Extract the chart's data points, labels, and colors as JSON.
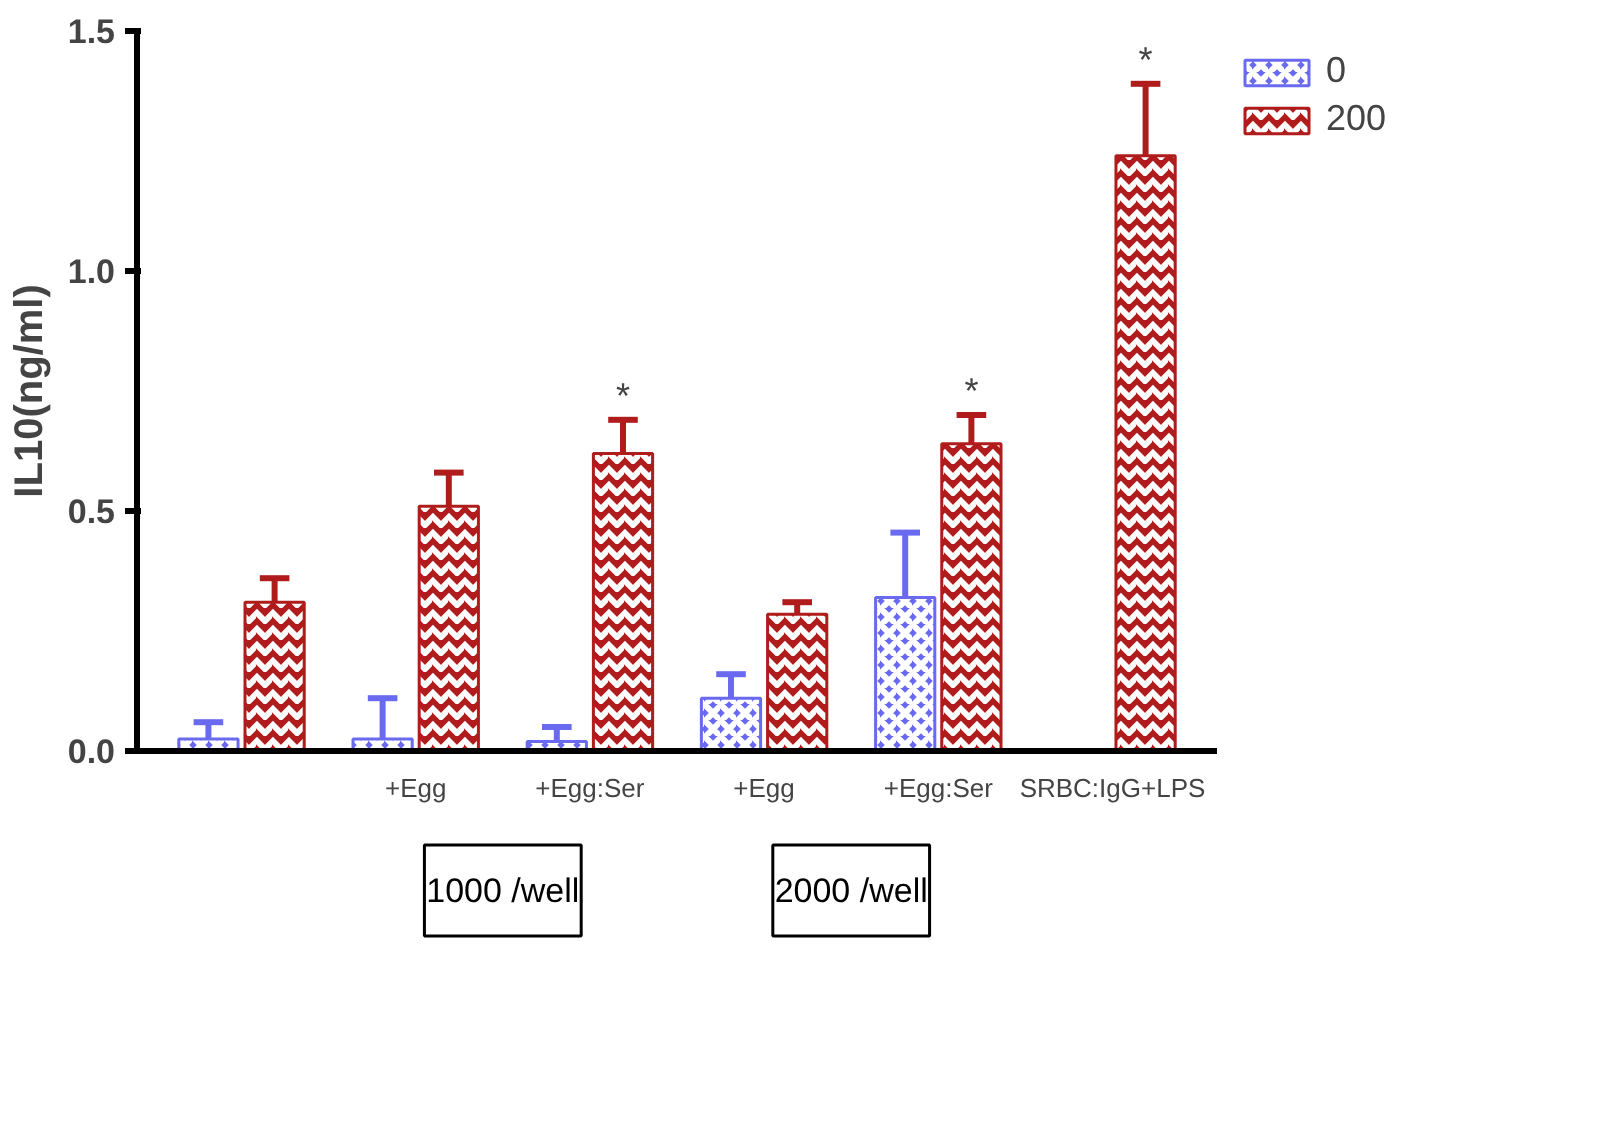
{
  "chart_data": {
    "type": "bar",
    "ylabel": "IL10(ng/ml)",
    "categories": [
      null,
      "+Egg",
      "+Egg:Ser",
      "+Egg",
      "+Egg:Ser",
      "SRBC:IgG+LPS"
    ],
    "series": [
      {
        "name": "0",
        "color": "#6a6af0",
        "values": [
          0.025,
          0.025,
          0.02,
          0.11,
          0.32,
          null
        ],
        "errors": [
          [
            0.025,
            0.06
          ],
          [
            0.025,
            0.11
          ],
          [
            0.02,
            0.05
          ],
          [
            0.11,
            0.16
          ],
          [
            0.32,
            0.455
          ],
          null
        ]
      },
      {
        "name": "200",
        "color": "#b01c1c",
        "values": [
          0.31,
          0.51,
          0.62,
          0.285,
          0.64,
          1.24
        ],
        "errors": [
          [
            0.31,
            0.36
          ],
          [
            0.51,
            0.58
          ],
          [
            0.62,
            0.69
          ],
          [
            0.285,
            0.31
          ],
          [
            0.64,
            0.7
          ],
          [
            1.24,
            1.39
          ]
        ]
      }
    ],
    "ylim": [
      0,
      1.5
    ],
    "yticks": [
      {
        "value": 0,
        "label": "0.0"
      },
      {
        "value": 0.5,
        "label": "0.5"
      },
      {
        "value": 1,
        "label": "1.0"
      },
      1.5
    ],
    "grid": false,
    "legend": "top right",
    "annotations": [
      "*",
      "*",
      "*",
      "1000 /well",
      "2000 /well"
    ]
  }
}
